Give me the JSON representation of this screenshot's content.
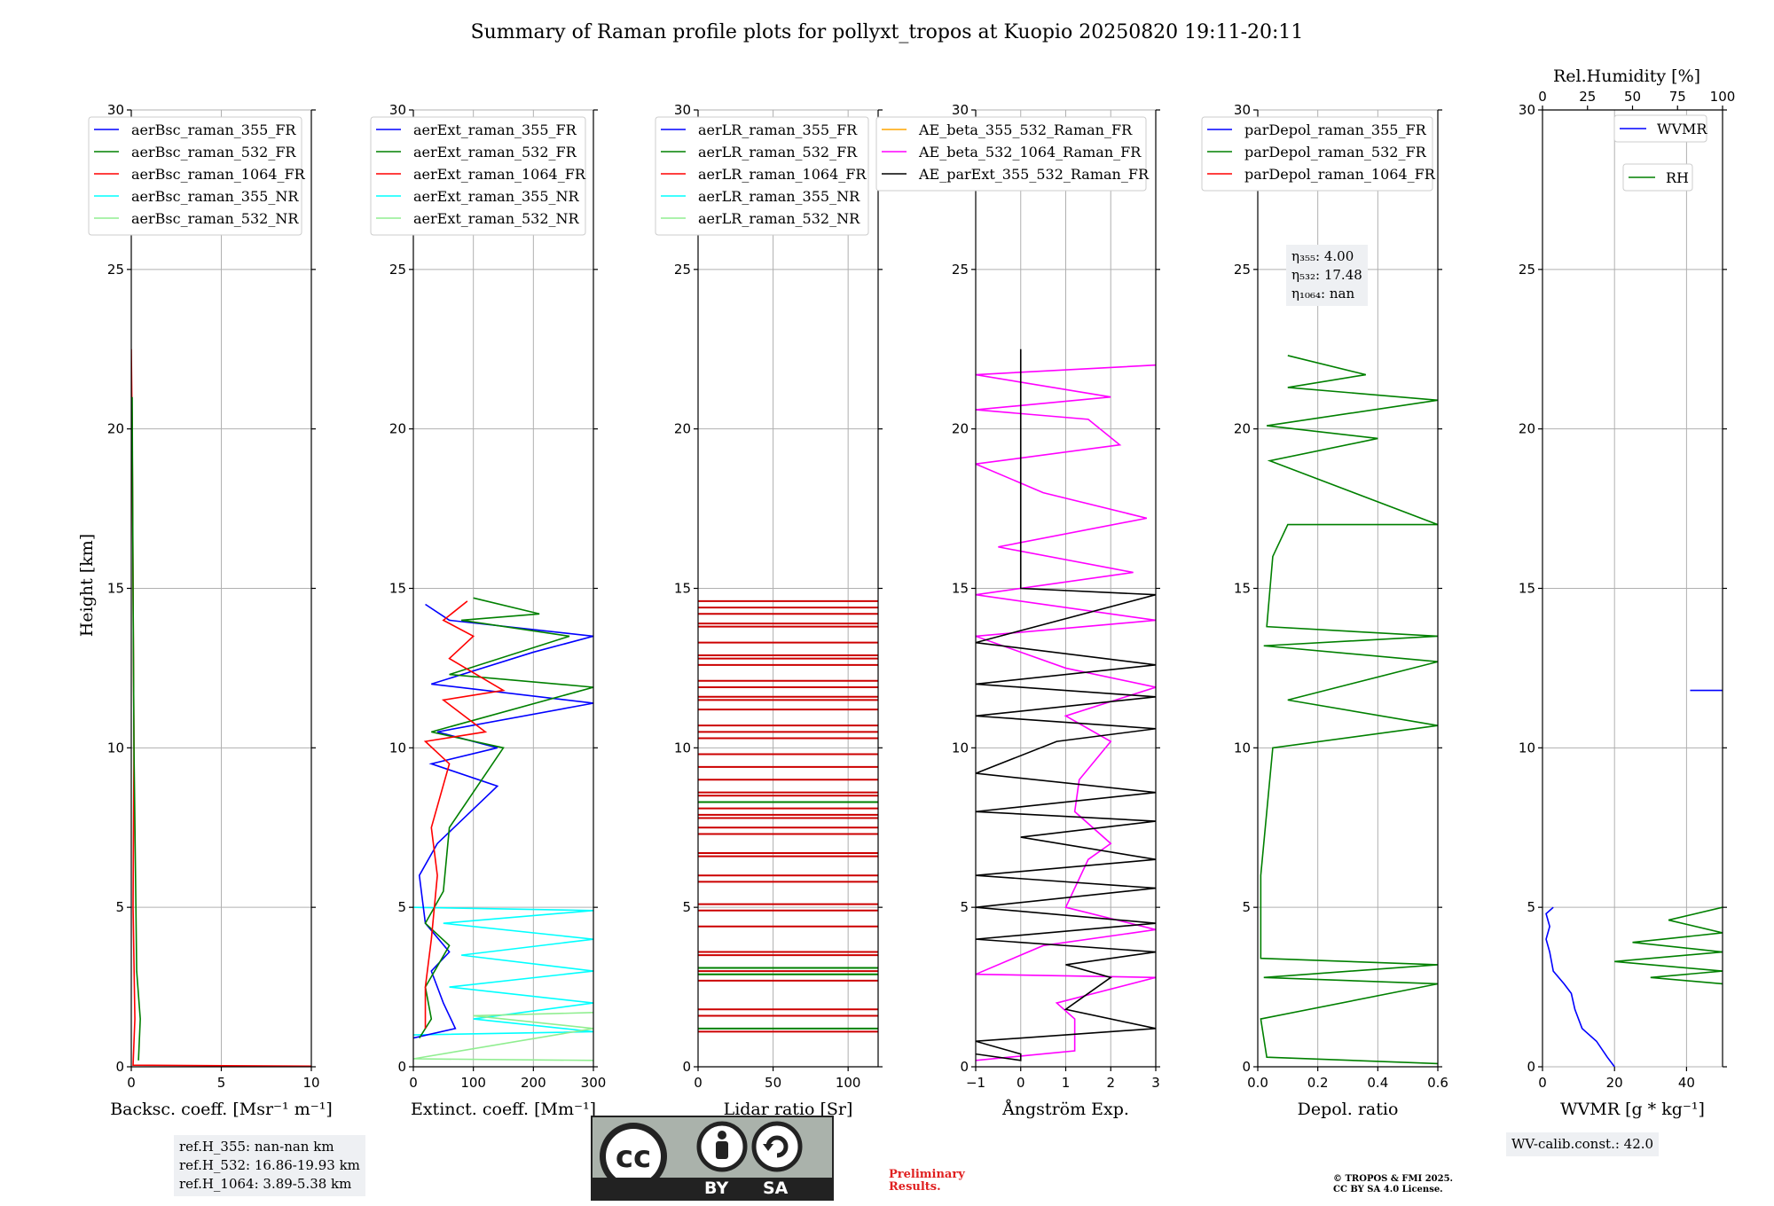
{
  "title": "Summary of Raman profile plots for pollyxt_tropos at Kuopio 20250820 19:11-20:11",
  "y_axis_label": "Height [km]",
  "rh_axis_label": "Rel.Humidity [%]",
  "ref_heights": [
    "ref.H_355: nan-nan km",
    "ref.H_532: 16.86-19.93 km",
    "ref.H_1064: 3.89-5.38 km"
  ],
  "eta": {
    "e355": "η₃₅₅: 4.00",
    "e532": "η₅₃₂: 17.48",
    "e1064": "η₁₀₆₄: nan"
  },
  "wv_calib": "WV-calib.const.: 42.0",
  "preliminary": [
    "Preliminary",
    "Results."
  ],
  "copyright": [
    "© TROPOS & FMI 2025.",
    "CC BY SA 4.0 License."
  ],
  "license_badge": {
    "by": "BY",
    "sa": "SA",
    "cc": "cc"
  },
  "chart_data": [
    {
      "type": "line",
      "xlabel": "Backsc. coeff. [Msr⁻¹ m⁻¹]",
      "xlim": [
        0,
        10
      ],
      "xticks": [
        0,
        5,
        10
      ],
      "ylim": [
        0,
        30
      ],
      "yticks": [
        0,
        5,
        10,
        15,
        20,
        25,
        30
      ],
      "legend": [
        "aerBsc_raman_355_FR",
        "aerBsc_raman_532_FR",
        "aerBsc_raman_1064_FR",
        "aerBsc_raman_355_NR",
        "aerBsc_raman_532_NR"
      ],
      "legend_colors": [
        "#0000ff",
        "#008000",
        "#ff0000",
        "#00ffff",
        "#90ee90"
      ],
      "series": [
        {
          "name": "aerBsc_raman_1064_FR",
          "color": "#ff0000",
          "points": [
            [
              10,
              0.02
            ],
            [
              0.1,
              0.05
            ],
            [
              0.2,
              1.5
            ],
            [
              0.1,
              5
            ],
            [
              0.15,
              10
            ],
            [
              0.1,
              15
            ],
            [
              0.05,
              20
            ],
            [
              0.0,
              22.5
            ]
          ]
        },
        {
          "name": "aerBsc_raman_532_FR",
          "color": "#008000",
          "points": [
            [
              0.4,
              0.2
            ],
            [
              0.5,
              1.5
            ],
            [
              0.3,
              3
            ],
            [
              0.15,
              10
            ],
            [
              0.1,
              15
            ],
            [
              0.05,
              21
            ]
          ]
        }
      ]
    },
    {
      "type": "line",
      "xlabel": "Extinct. coeff. [Mm⁻¹]",
      "xlim": [
        0,
        300
      ],
      "xticks": [
        0,
        100,
        200,
        300
      ],
      "ylim": [
        0,
        30
      ],
      "yticks": [
        0,
        5,
        10,
        15,
        20,
        25,
        30
      ],
      "legend": [
        "aerExt_raman_355_FR",
        "aerExt_raman_532_FR",
        "aerExt_raman_1064_FR",
        "aerExt_raman_355_NR",
        "aerExt_raman_532_NR"
      ],
      "legend_colors": [
        "#0000ff",
        "#008000",
        "#ff0000",
        "#00ffff",
        "#90ee90"
      ],
      "series": [
        {
          "name": "aerExt_raman_355_NR",
          "color": "#00ffff",
          "points": [
            [
              0,
              1.0
            ],
            [
              300,
              1.1
            ],
            [
              100,
              1.5
            ],
            [
              300,
              2.0
            ],
            [
              60,
              2.5
            ],
            [
              300,
              3.0
            ],
            [
              80,
              3.5
            ],
            [
              300,
              4.0
            ],
            [
              50,
              4.5
            ],
            [
              300,
              4.9
            ],
            [
              0,
              5.0
            ]
          ]
        },
        {
          "name": "aerExt_raman_532_NR",
          "color": "#90ee90",
          "points": [
            [
              300,
              0.2
            ],
            [
              0,
              0.25
            ],
            [
              300,
              1.2
            ],
            [
              100,
              1.6
            ],
            [
              300,
              1.7
            ]
          ]
        },
        {
          "name": "aerExt_raman_355_FR",
          "color": "#0000ff",
          "points": [
            [
              0,
              0.9
            ],
            [
              70,
              1.2
            ],
            [
              50,
              2.0
            ],
            [
              30,
              3.0
            ],
            [
              60,
              3.6
            ],
            [
              20,
              4.5
            ],
            [
              10,
              6.0
            ],
            [
              40,
              7.0
            ],
            [
              140,
              8.8
            ],
            [
              30,
              9.5
            ],
            [
              140,
              10.0
            ],
            [
              40,
              10.5
            ],
            [
              300,
              11.4
            ],
            [
              30,
              12.0
            ],
            [
              200,
              13.0
            ],
            [
              300,
              13.5
            ],
            [
              60,
              14.0
            ],
            [
              20,
              14.5
            ]
          ]
        },
        {
          "name": "aerExt_raman_532_FR",
          "color": "#008000",
          "points": [
            [
              10,
              0.9
            ],
            [
              30,
              1.5
            ],
            [
              20,
              2.5
            ],
            [
              60,
              3.8
            ],
            [
              20,
              4.5
            ],
            [
              50,
              5.5
            ],
            [
              60,
              7.5
            ],
            [
              150,
              10.0
            ],
            [
              30,
              10.5
            ],
            [
              300,
              11.9
            ],
            [
              60,
              12.3
            ],
            [
              260,
              13.5
            ],
            [
              80,
              14.0
            ],
            [
              210,
              14.2
            ],
            [
              100,
              14.7
            ]
          ]
        },
        {
          "name": "aerExt_raman_1064_FR",
          "color": "#ff0000",
          "points": [
            [
              20,
              1.2
            ],
            [
              20,
              2.5
            ],
            [
              30,
              4.0
            ],
            [
              40,
              6.0
            ],
            [
              30,
              7.5
            ],
            [
              60,
              9.5
            ],
            [
              20,
              10.2
            ],
            [
              120,
              10.5
            ],
            [
              50,
              11.5
            ],
            [
              150,
              11.8
            ],
            [
              60,
              12.8
            ],
            [
              100,
              13.5
            ],
            [
              50,
              14.0
            ],
            [
              90,
              14.6
            ]
          ]
        }
      ]
    },
    {
      "type": "line",
      "xlabel": "Lidar ratio [Sr]",
      "xlim": [
        0,
        120
      ],
      "xticks": [
        0,
        50,
        100
      ],
      "ylim": [
        0,
        30
      ],
      "yticks": [
        0,
        5,
        10,
        15,
        20,
        25,
        30
      ],
      "legend": [
        "aerLR_raman_355_FR",
        "aerLR_raman_532_FR",
        "aerLR_raman_1064_FR",
        "aerLR_raman_355_NR",
        "aerLR_raman_532_NR"
      ],
      "legend_colors": [
        "#0000ff",
        "#008000",
        "#ff0000",
        "#00ffff",
        "#90ee90"
      ],
      "hlines": [
        {
          "color": "#cc0000",
          "y": [
            1.1,
            1.6,
            1.8,
            2.7,
            3.0,
            3.5,
            3.6,
            4.4,
            4.9,
            5.1,
            5.8,
            6.0,
            6.6,
            6.7,
            7.3,
            7.5,
            7.8,
            7.9,
            8.1,
            8.5,
            8.6,
            9.0,
            9.4,
            9.8,
            10.3,
            10.5,
            10.7,
            11.2,
            11.5,
            11.6,
            11.9,
            12.1,
            12.6,
            12.8,
            12.9,
            13.3,
            13.8,
            13.9,
            14.2,
            14.4,
            14.6
          ]
        },
        {
          "color": "#008000",
          "y": [
            1.2,
            2.9,
            3.1,
            8.3
          ]
        }
      ]
    },
    {
      "type": "line",
      "xlabel": "Ångström Exp.",
      "xlim": [
        -1,
        3
      ],
      "xticks": [
        -1,
        0,
        1,
        2,
        3
      ],
      "ylim": [
        0,
        30
      ],
      "yticks": [
        0,
        5,
        10,
        15,
        20,
        25,
        30
      ],
      "legend": [
        "AE_beta_355_532_Raman_FR",
        "AE_beta_532_1064_Raman_FR",
        "AE_parExt_355_532_Raman_FR"
      ],
      "legend_colors": [
        "#ffa500",
        "#ff00ff",
        "#000000"
      ],
      "series": [
        {
          "name": "AE_beta_532_1064_Raman_FR",
          "color": "#ff00ff",
          "points": [
            [
              -1,
              0.2
            ],
            [
              1.2,
              0.5
            ],
            [
              1.2,
              1.5
            ],
            [
              0.8,
              2.0
            ],
            [
              3,
              2.8
            ],
            [
              -1,
              2.9
            ],
            [
              0.5,
              3.8
            ],
            [
              3,
              4.3
            ],
            [
              1.0,
              5.0
            ],
            [
              1.5,
              6.5
            ],
            [
              2.0,
              7.0
            ],
            [
              1.2,
              8.0
            ],
            [
              1.3,
              9.0
            ],
            [
              2.0,
              10.2
            ],
            [
              1.0,
              11.0
            ],
            [
              3,
              11.9
            ],
            [
              1.0,
              12.5
            ],
            [
              -1,
              13.5
            ],
            [
              3,
              14.0
            ],
            [
              -1,
              14.8
            ],
            [
              2.5,
              15.5
            ],
            [
              -0.5,
              16.3
            ],
            [
              2.8,
              17.2
            ],
            [
              0.5,
              18.0
            ],
            [
              -1,
              18.9
            ],
            [
              2.2,
              19.5
            ],
            [
              1.5,
              20.3
            ],
            [
              -1,
              20.6
            ],
            [
              2.0,
              21.0
            ],
            [
              -1,
              21.7
            ],
            [
              3,
              22.0
            ]
          ]
        },
        {
          "name": "AE_parExt_355_532_Raman_FR",
          "color": "#000000",
          "points": [
            [
              -1,
              0.4
            ],
            [
              0,
              0.2
            ],
            [
              0,
              0.4
            ],
            [
              -1,
              0.8
            ],
            [
              3,
              1.2
            ],
            [
              1.0,
              1.8
            ],
            [
              2.0,
              2.8
            ],
            [
              1.0,
              3.2
            ],
            [
              3,
              3.6
            ],
            [
              -1,
              4.0
            ],
            [
              3,
              4.5
            ],
            [
              -1,
              5.0
            ],
            [
              3,
              5.6
            ],
            [
              -1,
              6.0
            ],
            [
              3,
              6.5
            ],
            [
              0,
              7.2
            ],
            [
              3,
              7.7
            ],
            [
              -1,
              8.0
            ],
            [
              3,
              8.6
            ],
            [
              -1,
              9.2
            ],
            [
              0.8,
              10.2
            ],
            [
              3,
              10.6
            ],
            [
              -1,
              11.0
            ],
            [
              3,
              11.6
            ],
            [
              -1,
              12.0
            ],
            [
              3,
              12.6
            ],
            [
              -1,
              13.3
            ],
            [
              3,
              14.8
            ],
            [
              0,
              15.0
            ],
            [
              0,
              22.5
            ]
          ]
        }
      ]
    },
    {
      "type": "line",
      "xlabel": "Depol. ratio",
      "xlim": [
        0,
        0.6
      ],
      "xticks": [
        0.0,
        0.2,
        0.4,
        0.6
      ],
      "ylim": [
        0,
        30
      ],
      "yticks": [
        0,
        5,
        10,
        15,
        20,
        25,
        30
      ],
      "legend": [
        "parDepol_raman_355_FR",
        "parDepol_raman_532_FR",
        "parDepol_raman_1064_FR"
      ],
      "legend_colors": [
        "#0000ff",
        "#008000",
        "#ff0000"
      ],
      "series": [
        {
          "name": "parDepol_raman_532_FR",
          "color": "#008000",
          "points": [
            [
              0.6,
              0.1
            ],
            [
              0.03,
              0.3
            ],
            [
              0.01,
              1.5
            ],
            [
              0.6,
              2.6
            ],
            [
              0.02,
              2.8
            ],
            [
              0.6,
              3.2
            ],
            [
              0.01,
              3.4
            ],
            [
              0.01,
              6.0
            ],
            [
              0.03,
              8.0
            ],
            [
              0.05,
              10.0
            ],
            [
              0.6,
              10.7
            ],
            [
              0.1,
              11.5
            ],
            [
              0.6,
              12.7
            ],
            [
              0.02,
              13.2
            ],
            [
              0.6,
              13.5
            ],
            [
              0.03,
              13.8
            ],
            [
              0.05,
              16.0
            ],
            [
              0.1,
              17.0
            ],
            [
              0.6,
              17.0
            ],
            [
              0.04,
              19.0
            ],
            [
              0.4,
              19.7
            ],
            [
              0.03,
              20.1
            ],
            [
              0.6,
              20.9
            ],
            [
              0.1,
              21.3
            ],
            [
              0.36,
              21.7
            ],
            [
              0.1,
              22.3
            ]
          ]
        }
      ]
    },
    {
      "type": "line",
      "xlabel": "WVMR [g * kg⁻¹]",
      "xlim": [
        0,
        50
      ],
      "xticks": [
        0,
        20,
        40
      ],
      "x2lim": [
        0,
        100
      ],
      "x2ticks": [
        0,
        25,
        50,
        75,
        100
      ],
      "ylim": [
        0,
        30
      ],
      "yticks": [
        0,
        5,
        10,
        15,
        20,
        25,
        30
      ],
      "legend": [
        "WVMR",
        "RH"
      ],
      "legend_colors": [
        "#0000ff",
        "#008000"
      ],
      "series": [
        {
          "name": "WVMR",
          "color": "#0000ff",
          "points": [
            [
              20,
              0.0
            ],
            [
              18,
              0.3
            ],
            [
              15,
              0.8
            ],
            [
              11,
              1.2
            ],
            [
              9,
              1.8
            ],
            [
              8,
              2.3
            ],
            [
              6,
              2.6
            ],
            [
              3,
              3.0
            ],
            [
              2,
              3.6
            ],
            [
              1,
              4.0
            ],
            [
              2,
              4.4
            ],
            [
              1,
              4.8
            ],
            [
              3,
              5.0
            ]
          ]
        },
        {
          "name": "RH",
          "color": "#008000",
          "points": [
            [
              100,
              2.6
            ],
            [
              60,
              2.8
            ],
            [
              100,
              3.0
            ],
            [
              40,
              3.3
            ],
            [
              100,
              3.6
            ],
            [
              50,
              3.9
            ],
            [
              100,
              4.2
            ],
            [
              70,
              4.6
            ],
            [
              100,
              5.0
            ]
          ]
        }
      ],
      "isolated": [
        {
          "color": "#0000ff",
          "points": [
            [
              41,
              11.8
            ],
            [
              50,
              11.8
            ]
          ]
        }
      ]
    }
  ]
}
